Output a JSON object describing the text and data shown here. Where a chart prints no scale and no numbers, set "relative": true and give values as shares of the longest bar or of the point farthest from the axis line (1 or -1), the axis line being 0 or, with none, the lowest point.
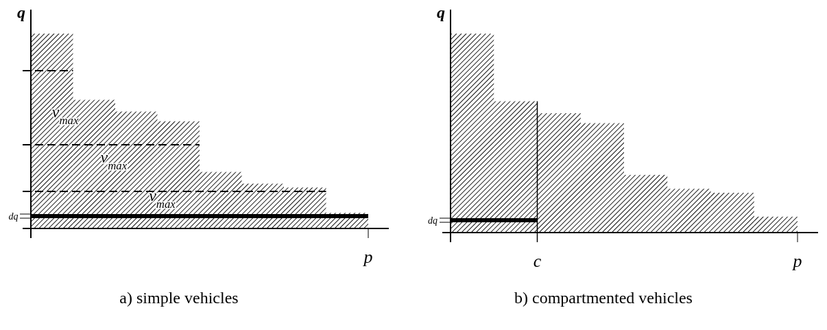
{
  "chart_data": [
    {
      "type": "bar",
      "relative": true,
      "title": "a) simple vehicles",
      "ylabel": "q",
      "categories": [
        null,
        null,
        null,
        null,
        null,
        null,
        null,
        null
      ],
      "values": [
        1,
        0.66,
        0.6,
        0.55,
        0.29,
        0.23,
        0.21,
        0.08
      ],
      "color": "#000000",
      "ref_lines": [
        {
          "axis": "y",
          "value": 0.81,
          "line_style": "dashed",
          "color": "#000000"
        },
        {
          "axis": "y",
          "value": 0.43,
          "line_style": "dashed",
          "color": "#000000"
        },
        {
          "axis": "y",
          "value": 0.19,
          "line_style": "dashed",
          "color": "#000000"
        }
      ],
      "annotations": [
        "v$_{max}$",
        "v$_{max}$",
        "v$_{max}$",
        "p",
        "dq"
      ]
    },
    {
      "type": "bar",
      "relative": true,
      "title": "b) compartmented vehicles",
      "ylabel": "q",
      "categories": [
        null,
        null,
        null,
        null,
        null,
        null,
        null,
        null
      ],
      "values": [
        1,
        0.66,
        0.6,
        0.55,
        0.29,
        0.22,
        0.2,
        0.08
      ],
      "color": "#000000",
      "annotations": [
        "dq",
        "c",
        "p"
      ]
    }
  ]
}
